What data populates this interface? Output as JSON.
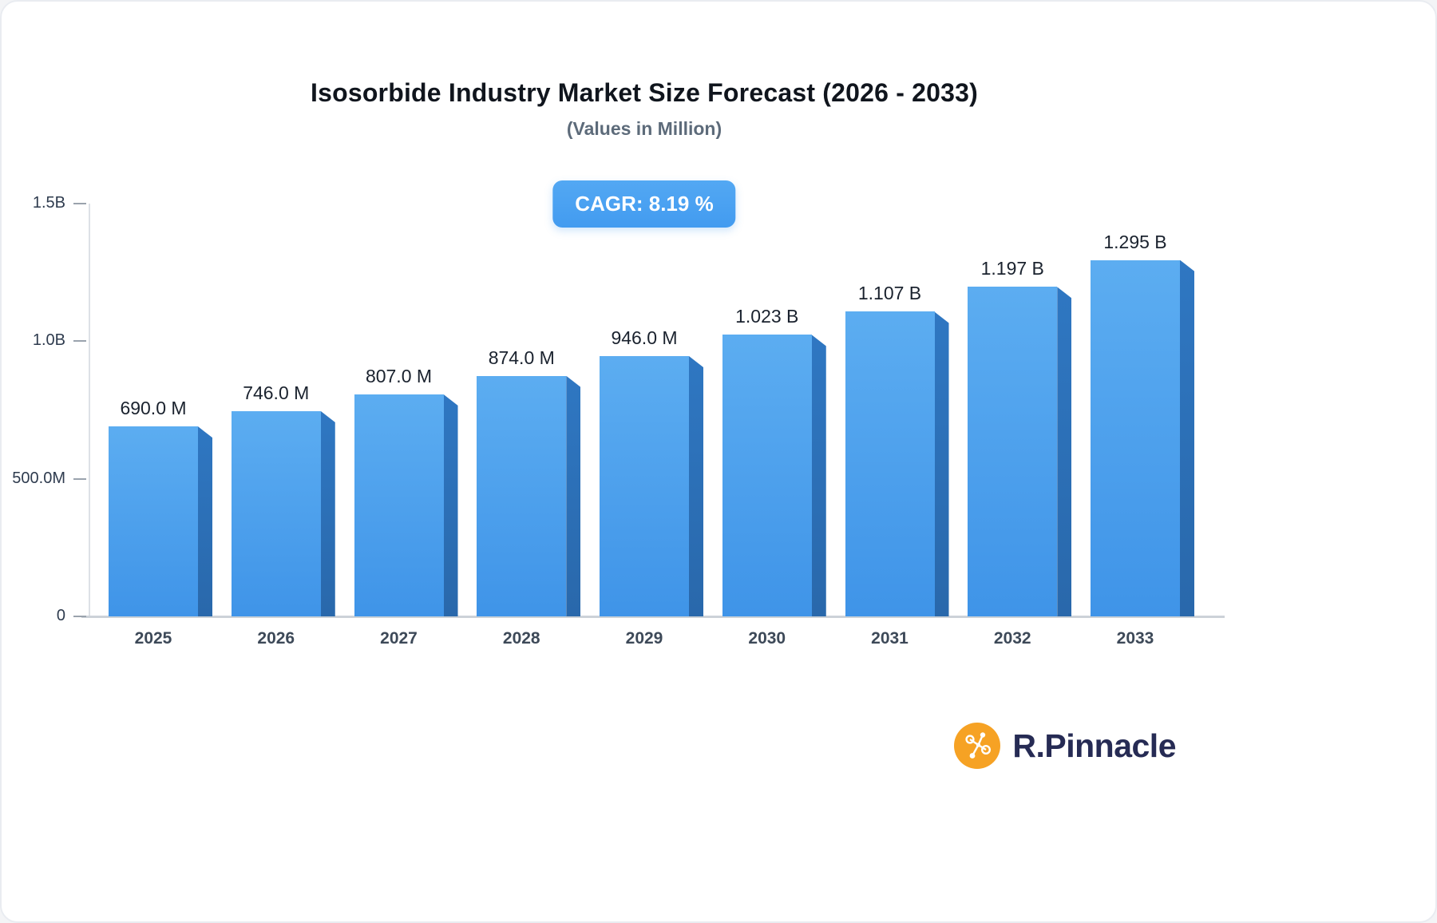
{
  "header": {
    "title": "Isosorbide Industry Market Size Forecast (2026 - 2033)",
    "subtitle": "(Values in Million)",
    "cagr_label": "CAGR: 8.19 %"
  },
  "chart_data": {
    "type": "bar",
    "title": "Isosorbide Industry Market Size Forecast (2026 - 2033)",
    "subtitle": "(Values in Million)",
    "categories": [
      "2025",
      "2026",
      "2027",
      "2028",
      "2029",
      "2030",
      "2031",
      "2032",
      "2033"
    ],
    "values": [
      690,
      746,
      807,
      874,
      946,
      1023,
      1107,
      1197,
      1295
    ],
    "value_labels": [
      "690.0 M",
      "746.0 M",
      "807.0 M",
      "874.0 M",
      "946.0 M",
      "1.023 B",
      "1.107 B",
      "1.197 B",
      "1.295 B"
    ],
    "unit": "Million USD",
    "xlabel": "",
    "ylabel": "",
    "ylim": [
      0,
      1500
    ],
    "yticks": [
      {
        "value": 1500,
        "label": "1.5B"
      },
      {
        "value": 1000,
        "label": "1.0B"
      },
      {
        "value": 500,
        "label": "500.0M"
      },
      {
        "value": 0,
        "label": "0"
      }
    ],
    "grid": false,
    "legend": false,
    "bar_color_top": "#5cadf1",
    "bar_color_bottom": "#3f94e8",
    "bar_side_color": "#2f77c2",
    "annotation": "CAGR: 8.19 %"
  },
  "branding": {
    "name": "R.Pinnacle",
    "icon": "molecule-network-icon",
    "icon_color": "#f6a224",
    "text_color": "#262b54"
  }
}
